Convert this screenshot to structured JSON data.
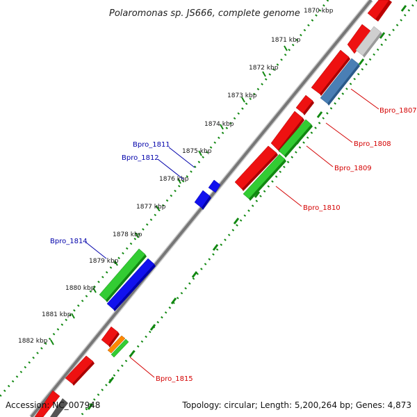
{
  "title": "Polaromonas sp. JS666, complete genome",
  "partial_tick": "1870 kbp",
  "ticks": [
    "1871 kbp",
    "1872 kbp",
    "1873 kbp",
    "1874 kbp",
    "1875 kbp",
    "1876 kbp",
    "1877 kbp",
    "1878 kbp",
    "1879 kbp",
    "1880 kbp",
    "1881 kbp",
    "1882 kbp"
  ],
  "gene_labels": {
    "bpro_1807": "Bpro_1807",
    "bpro_1808": "Bpro_1808",
    "bpro_1809": "Bpro_1809",
    "bpro_1810": "Bpro_1810",
    "bpro_1811": "Bpro_1811",
    "bpro_1812": "Bpro_1812",
    "bpro_1814": "Bpro_1814",
    "bpro_1815": "Bpro_1815"
  },
  "footer": {
    "accession": "Accession: NC_007948",
    "summary": "Topology: circular; Length: 5,200,264 bp; Genes: 4,873"
  },
  "colors": {
    "red": "#ee1111",
    "green": "#33cc33",
    "blue": "#1111ee",
    "steelblue": "#4a7fb5",
    "gray": "#c8c8c8",
    "orange": "#ff8800",
    "backbone": "#777777",
    "tick": "#118811"
  }
}
